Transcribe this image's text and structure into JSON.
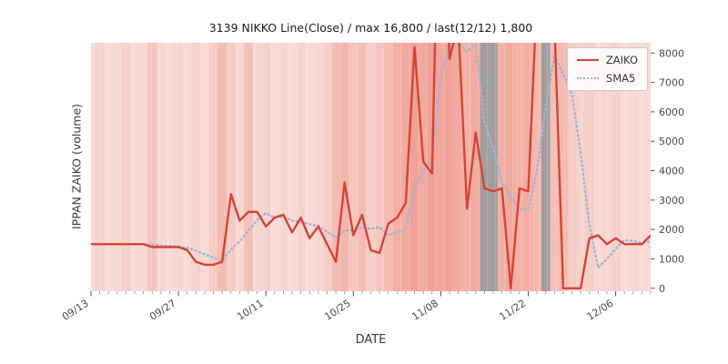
{
  "chart_data": {
    "type": "line",
    "title": "3139 NIKKO Line(Close) / max 16,800 / last(12/12) 1,800",
    "xlabel": "DATE",
    "ylabel": "IPPAN ZAIKO (volume)",
    "ylim": [
      -100,
      8350
    ],
    "y_ticks": [
      0,
      1000,
      2000,
      3000,
      4000,
      5000,
      6000,
      7000,
      8000
    ],
    "x_ticks": [
      {
        "index": 0,
        "label": "09/13"
      },
      {
        "index": 10,
        "label": "09/27"
      },
      {
        "index": 20,
        "label": "10/11"
      },
      {
        "index": 30,
        "label": "10/25"
      },
      {
        "index": 40,
        "label": "11/08"
      },
      {
        "index": 50,
        "label": "11/22"
      },
      {
        "index": 60,
        "label": "12/06"
      }
    ],
    "n_points": 65,
    "legend_position": "upper right",
    "series": [
      {
        "name": "ZAIKO",
        "style": "solid",
        "color": "#d84332",
        "values": [
          1500,
          1500,
          1500,
          1500,
          1500,
          1500,
          1500,
          1400,
          1400,
          1400,
          1400,
          1300,
          900,
          800,
          800,
          900,
          3200,
          2300,
          2600,
          2600,
          2100,
          2400,
          2500,
          1900,
          2400,
          1700,
          2100,
          1500,
          900,
          3600,
          1800,
          2500,
          1300,
          1200,
          2200,
          2400,
          2900,
          8200,
          4300,
          3900,
          16800,
          7800,
          9000,
          2700,
          5300,
          3400,
          3300,
          3400,
          0,
          3400,
          3300,
          10000,
          14000,
          9000,
          0,
          0,
          0,
          1700,
          1800,
          1500,
          1700,
          1500,
          1500,
          1500,
          1800
        ]
      },
      {
        "name": "SMA5",
        "style": "dotted",
        "color": "#a2b4d4",
        "derived": "moving_average_of_ZAIKO",
        "window": 5
      }
    ],
    "background": {
      "plot_bg": "#fae9e6",
      "band_color": "#e8604c",
      "band_alpha": [
        0.1,
        0.16,
        0.1,
        0.12,
        0.18,
        0.1,
        0.12,
        0.26,
        0.14,
        0.1,
        0.14,
        0.1,
        0.16,
        0.1,
        0.22,
        0.34,
        0.22,
        0.12,
        0.3,
        0.14,
        0.16,
        0.1,
        0.14,
        0.1,
        0.16,
        0.1,
        0.12,
        0.2,
        0.34,
        0.38,
        0.26,
        0.32,
        0.2,
        0.26,
        0.32,
        0.42,
        0.46,
        0.52,
        0.46,
        0.52,
        0.48,
        0.52,
        0.46,
        0.4,
        0.46,
        0,
        0,
        0.42,
        0.46,
        0.4,
        0.44,
        0.36,
        0,
        0.3,
        0.34,
        0.22,
        0.16,
        0.2,
        0.12,
        0.14,
        0.18,
        0.1,
        0.12,
        0.1,
        0.12
      ],
      "gray_band_color": "#8f8f8f",
      "gray_band_alpha": 0.85,
      "gray_indices": [
        45,
        46,
        52
      ]
    }
  }
}
